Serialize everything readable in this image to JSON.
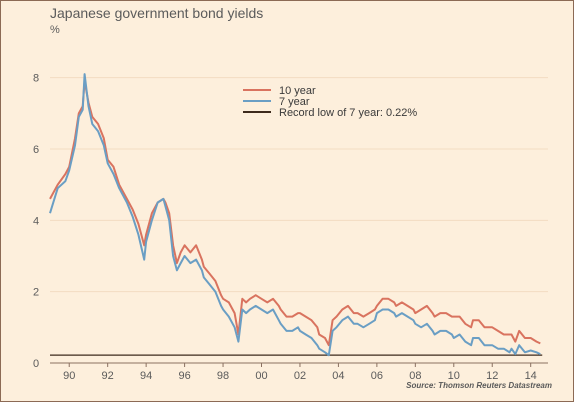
{
  "chart_data": {
    "type": "line",
    "title": "Japanese government bond yields",
    "unit_label": "%",
    "source": "Source: Thomson Reuters Datastream",
    "xlabel": "",
    "ylabel": "",
    "xlim": [
      1989.0,
      2014.9
    ],
    "ylim": [
      0,
      9
    ],
    "y_ticks": [
      0,
      2,
      4,
      6,
      8
    ],
    "x_ticks": [
      {
        "value": 1990,
        "label": "90"
      },
      {
        "value": 1992,
        "label": "92"
      },
      {
        "value": 1994,
        "label": "94"
      },
      {
        "value": 1996,
        "label": "96"
      },
      {
        "value": 1998,
        "label": "98"
      },
      {
        "value": 2000,
        "label": "00"
      },
      {
        "value": 2002,
        "label": "02"
      },
      {
        "value": 2004,
        "label": "04"
      },
      {
        "value": 2006,
        "label": "06"
      },
      {
        "value": 2008,
        "label": "08"
      },
      {
        "value": 2010,
        "label": "10"
      },
      {
        "value": 2012,
        "label": "12"
      },
      {
        "value": 2014,
        "label": "14"
      }
    ],
    "grid": true,
    "legend_position": "top-center",
    "reference_line": {
      "name": "Record low of 7 year: 0.22%",
      "value": 0.22,
      "color": "#3d2a1c"
    },
    "series": [
      {
        "name": "10 year",
        "color": "#d9735f",
        "x": [
          1989.0,
          1989.4,
          1989.8,
          1990.0,
          1990.3,
          1990.5,
          1990.7,
          1990.8,
          1991.0,
          1991.2,
          1991.5,
          1991.8,
          1992.0,
          1992.3,
          1992.6,
          1993.0,
          1993.3,
          1993.6,
          1993.9,
          1994.0,
          1994.3,
          1994.6,
          1994.9,
          1995.0,
          1995.2,
          1995.4,
          1995.6,
          1995.8,
          1996.0,
          1996.3,
          1996.6,
          1996.9,
          1997.0,
          1997.3,
          1997.6,
          1997.9,
          1998.0,
          1998.3,
          1998.6,
          1998.8,
          1999.0,
          1999.2,
          1999.4,
          1999.7,
          2000.0,
          2000.3,
          2000.6,
          2000.9,
          2001.0,
          2001.3,
          2001.6,
          2001.9,
          2002.0,
          2002.3,
          2002.6,
          2002.9,
          2003.0,
          2003.3,
          2003.5,
          2003.7,
          2003.9,
          2004.2,
          2004.5,
          2004.8,
          2005.0,
          2005.3,
          2005.6,
          2005.9,
          2006.0,
          2006.3,
          2006.6,
          2006.9,
          2007.0,
          2007.3,
          2007.6,
          2007.9,
          2008.0,
          2008.3,
          2008.6,
          2008.9,
          2009.0,
          2009.3,
          2009.6,
          2009.9,
          2010.0,
          2010.3,
          2010.6,
          2010.9,
          2011.0,
          2011.3,
          2011.6,
          2011.9,
          2012.0,
          2012.3,
          2012.6,
          2012.9,
          2013.0,
          2013.2,
          2013.4,
          2013.7,
          2014.0,
          2014.3,
          2014.5
        ],
        "y": [
          4.6,
          5.0,
          5.3,
          5.5,
          6.3,
          7.0,
          7.2,
          7.9,
          7.3,
          6.9,
          6.7,
          6.3,
          5.7,
          5.5,
          5.0,
          4.6,
          4.3,
          3.9,
          3.3,
          3.6,
          4.2,
          4.5,
          4.6,
          4.5,
          4.2,
          3.3,
          2.8,
          3.1,
          3.3,
          3.1,
          3.3,
          2.9,
          2.7,
          2.5,
          2.3,
          1.9,
          1.8,
          1.7,
          1.4,
          0.8,
          1.8,
          1.7,
          1.8,
          1.9,
          1.8,
          1.7,
          1.8,
          1.6,
          1.5,
          1.3,
          1.3,
          1.4,
          1.4,
          1.3,
          1.2,
          1.0,
          0.8,
          0.7,
          0.5,
          1.2,
          1.3,
          1.5,
          1.6,
          1.4,
          1.4,
          1.3,
          1.4,
          1.5,
          1.6,
          1.8,
          1.8,
          1.7,
          1.6,
          1.7,
          1.6,
          1.5,
          1.4,
          1.5,
          1.6,
          1.4,
          1.3,
          1.4,
          1.4,
          1.3,
          1.3,
          1.3,
          1.1,
          1.0,
          1.2,
          1.2,
          1.0,
          1.0,
          1.0,
          0.9,
          0.8,
          0.8,
          0.8,
          0.6,
          0.9,
          0.7,
          0.7,
          0.6,
          0.55
        ]
      },
      {
        "name": "7 year",
        "color": "#6a9ec4",
        "x": [
          1989.0,
          1989.4,
          1989.8,
          1990.0,
          1990.3,
          1990.5,
          1990.7,
          1990.8,
          1991.0,
          1991.2,
          1991.5,
          1991.8,
          1992.0,
          1992.3,
          1992.6,
          1993.0,
          1993.3,
          1993.6,
          1993.9,
          1994.0,
          1994.3,
          1994.6,
          1994.9,
          1995.0,
          1995.2,
          1995.4,
          1995.6,
          1995.8,
          1996.0,
          1996.3,
          1996.6,
          1996.9,
          1997.0,
          1997.3,
          1997.6,
          1997.9,
          1998.0,
          1998.3,
          1998.6,
          1998.8,
          1999.0,
          1999.2,
          1999.4,
          1999.7,
          2000.0,
          2000.3,
          2000.6,
          2000.9,
          2001.0,
          2001.3,
          2001.6,
          2001.9,
          2002.0,
          2002.3,
          2002.6,
          2002.9,
          2003.0,
          2003.3,
          2003.5,
          2003.7,
          2003.9,
          2004.2,
          2004.5,
          2004.8,
          2005.0,
          2005.3,
          2005.6,
          2005.9,
          2006.0,
          2006.3,
          2006.6,
          2006.9,
          2007.0,
          2007.3,
          2007.6,
          2007.9,
          2008.0,
          2008.3,
          2008.6,
          2008.9,
          2009.0,
          2009.3,
          2009.6,
          2009.9,
          2010.0,
          2010.3,
          2010.6,
          2010.9,
          2011.0,
          2011.3,
          2011.6,
          2011.9,
          2012.0,
          2012.3,
          2012.6,
          2012.9,
          2013.0,
          2013.2,
          2013.4,
          2013.7,
          2014.0,
          2014.3,
          2014.5
        ],
        "y": [
          4.2,
          4.9,
          5.1,
          5.4,
          6.1,
          6.9,
          7.1,
          8.1,
          7.2,
          6.7,
          6.5,
          6.1,
          5.6,
          5.3,
          4.9,
          4.5,
          4.1,
          3.6,
          2.9,
          3.4,
          4.0,
          4.5,
          4.6,
          4.4,
          4.0,
          3.0,
          2.6,
          2.8,
          3.0,
          2.8,
          2.9,
          2.6,
          2.4,
          2.2,
          2.0,
          1.6,
          1.5,
          1.3,
          1.0,
          0.6,
          1.5,
          1.4,
          1.5,
          1.6,
          1.5,
          1.4,
          1.5,
          1.2,
          1.1,
          0.9,
          0.9,
          1.0,
          0.9,
          0.8,
          0.7,
          0.5,
          0.4,
          0.3,
          0.22,
          0.9,
          1.0,
          1.2,
          1.3,
          1.1,
          1.1,
          1.0,
          1.1,
          1.2,
          1.4,
          1.5,
          1.5,
          1.4,
          1.3,
          1.4,
          1.3,
          1.2,
          1.1,
          1.0,
          1.1,
          0.9,
          0.8,
          0.9,
          0.9,
          0.8,
          0.7,
          0.8,
          0.6,
          0.5,
          0.7,
          0.7,
          0.5,
          0.5,
          0.5,
          0.4,
          0.4,
          0.3,
          0.4,
          0.25,
          0.5,
          0.3,
          0.35,
          0.3,
          0.25
        ]
      }
    ]
  }
}
